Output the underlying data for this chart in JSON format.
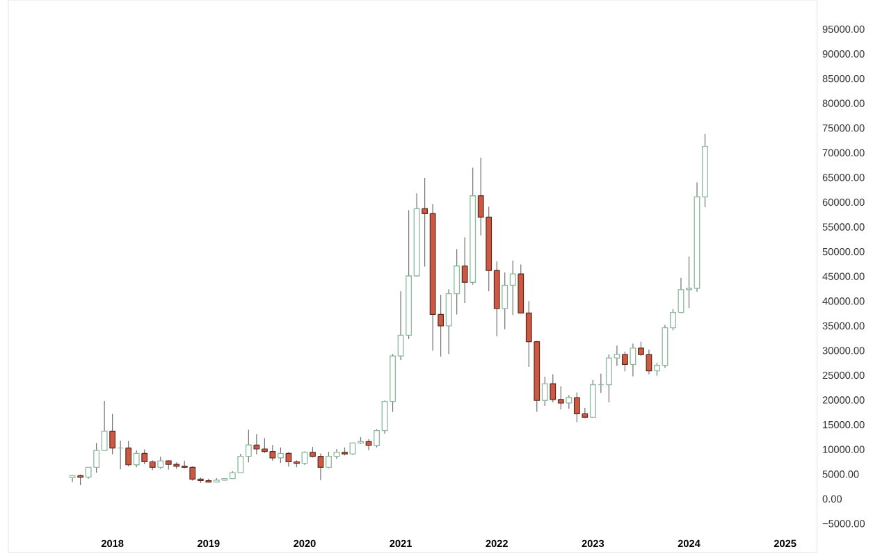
{
  "chart_data": {
    "type": "candlestick",
    "x": [
      "2017-08",
      "2017-09",
      "2017-10",
      "2017-11",
      "2017-12",
      "2018-01",
      "2018-02",
      "2018-03",
      "2018-04",
      "2018-05",
      "2018-06",
      "2018-07",
      "2018-08",
      "2018-09",
      "2018-10",
      "2018-11",
      "2018-12",
      "2019-01",
      "2019-02",
      "2019-03",
      "2019-04",
      "2019-05",
      "2019-06",
      "2019-07",
      "2019-08",
      "2019-09",
      "2019-10",
      "2019-11",
      "2019-12",
      "2020-01",
      "2020-02",
      "2020-03",
      "2020-04",
      "2020-05",
      "2020-06",
      "2020-07",
      "2020-08",
      "2020-09",
      "2020-10",
      "2020-11",
      "2020-12",
      "2021-01",
      "2021-02",
      "2021-03",
      "2021-04",
      "2021-05",
      "2021-06",
      "2021-07",
      "2021-08",
      "2021-09",
      "2021-10",
      "2021-11",
      "2021-12",
      "2022-01",
      "2022-02",
      "2022-03",
      "2022-04",
      "2022-05",
      "2022-06",
      "2022-07",
      "2022-08",
      "2022-09",
      "2022-10",
      "2022-11",
      "2022-12",
      "2023-01",
      "2023-02",
      "2023-03",
      "2023-04",
      "2023-05",
      "2023-06",
      "2023-07",
      "2023-08",
      "2023-09",
      "2023-10",
      "2023-11",
      "2023-12",
      "2024-01",
      "2024-02",
      "2024-03"
    ],
    "ohlc": [
      [
        4300,
        4700,
        3400,
        4700
      ],
      [
        4700,
        4900,
        2800,
        4400
      ],
      [
        4400,
        6400,
        4100,
        6400
      ],
      [
        6400,
        11300,
        5300,
        9800
      ],
      [
        9800,
        19800,
        9700,
        13700
      ],
      [
        13700,
        17200,
        9000,
        10300
      ],
      [
        10300,
        11800,
        6000,
        10300
      ],
      [
        10300,
        11700,
        6600,
        6900
      ],
      [
        6900,
        9800,
        6400,
        9200
      ],
      [
        9200,
        10000,
        7000,
        7500
      ],
      [
        7500,
        7800,
        5800,
        6400
      ],
      [
        6400,
        8500,
        6100,
        7700
      ],
      [
        7700,
        7800,
        5900,
        7000
      ],
      [
        7000,
        7400,
        6100,
        6600
      ],
      [
        6600,
        7700,
        6200,
        6400
      ],
      [
        6400,
        6600,
        3700,
        4000
      ],
      [
        4000,
        4300,
        3200,
        3700
      ],
      [
        3700,
        4100,
        3300,
        3400
      ],
      [
        3400,
        4200,
        3400,
        3800
      ],
      [
        3800,
        4100,
        3700,
        4100
      ],
      [
        4100,
        5600,
        4100,
        5300
      ],
      [
        5300,
        9100,
        5300,
        8600
      ],
      [
        8600,
        14000,
        7400,
        10900
      ],
      [
        10900,
        13100,
        9000,
        10100
      ],
      [
        10100,
        12300,
        9300,
        9600
      ],
      [
        9600,
        10900,
        7700,
        8300
      ],
      [
        8300,
        10400,
        7300,
        9200
      ],
      [
        9200,
        9500,
        6500,
        7500
      ],
      [
        7500,
        7800,
        6400,
        7200
      ],
      [
        7200,
        9600,
        6900,
        9400
      ],
      [
        9400,
        10500,
        8400,
        8600
      ],
      [
        8600,
        9200,
        3800,
        6400
      ],
      [
        6400,
        9500,
        6200,
        8600
      ],
      [
        8600,
        10100,
        8100,
        9400
      ],
      [
        9400,
        10400,
        8800,
        9100
      ],
      [
        9100,
        11400,
        8900,
        11300
      ],
      [
        11300,
        12500,
        11100,
        11600
      ],
      [
        11600,
        12100,
        9800,
        10800
      ],
      [
        10800,
        14100,
        10400,
        13800
      ],
      [
        13800,
        19900,
        13200,
        19700
      ],
      [
        19700,
        29300,
        17600,
        28900
      ],
      [
        28900,
        42000,
        28100,
        33100
      ],
      [
        33100,
        58400,
        32300,
        45100
      ],
      [
        45100,
        61800,
        45000,
        58700
      ],
      [
        58700,
        64900,
        47000,
        57700
      ],
      [
        57700,
        59600,
        30000,
        37300
      ],
      [
        37300,
        41300,
        28800,
        35000
      ],
      [
        35000,
        42400,
        29300,
        41500
      ],
      [
        41500,
        50500,
        37300,
        47100
      ],
      [
        47100,
        52900,
        39600,
        43800
      ],
      [
        43800,
        67000,
        43300,
        61300
      ],
      [
        61300,
        69000,
        53300,
        57000
      ],
      [
        57000,
        59100,
        42000,
        46200
      ],
      [
        46200,
        48000,
        32900,
        38500
      ],
      [
        38500,
        45800,
        34300,
        43200
      ],
      [
        43200,
        48200,
        37200,
        45500
      ],
      [
        45500,
        47400,
        37600,
        37600
      ],
      [
        37600,
        40000,
        26700,
        31800
      ],
      [
        31800,
        32000,
        17600,
        19900
      ],
      [
        19900,
        24700,
        18800,
        23300
      ],
      [
        23300,
        25200,
        19500,
        20100
      ],
      [
        20100,
        22800,
        18100,
        19400
      ],
      [
        19400,
        21000,
        18200,
        20500
      ],
      [
        20500,
        21500,
        15500,
        17200
      ],
      [
        17200,
        18400,
        16300,
        16500
      ],
      [
        16500,
        24000,
        16500,
        23100
      ],
      [
        23100,
        25300,
        21400,
        23100
      ],
      [
        23100,
        29200,
        19500,
        28500
      ],
      [
        28500,
        31000,
        26900,
        29200
      ],
      [
        29200,
        29800,
        25800,
        27200
      ],
      [
        27200,
        31400,
        24800,
        30500
      ],
      [
        30500,
        31800,
        28900,
        29200
      ],
      [
        29200,
        30200,
        25200,
        25900
      ],
      [
        25900,
        27500,
        24900,
        27000
      ],
      [
        27000,
        35200,
        26500,
        34600
      ],
      [
        34600,
        38400,
        34100,
        37700
      ],
      [
        37700,
        44700,
        37600,
        42300
      ],
      [
        42300,
        49000,
        38600,
        42600
      ],
      [
        42600,
        64000,
        41900,
        61100
      ],
      [
        61100,
        73800,
        59000,
        71300
      ]
    ],
    "colors": [
      "#8dbb9f",
      "#cc5a43",
      "#8dbb9f",
      "#8dbb9f",
      "#8dbb9f",
      "#cc5a43",
      "#8dbb9f",
      "#cc5a43",
      "#8dbb9f",
      "#cc5a43",
      "#cc5a43",
      "#8dbb9f",
      "#cc5a43",
      "#cc5a43",
      "#cc5a43",
      "#cc5a43",
      "#cc5a43",
      "#cc5a43",
      "#8dbb9f",
      "#8dbb9f",
      "#8dbb9f",
      "#8dbb9f",
      "#8dbb9f",
      "#cc5a43",
      "#cc5a43",
      "#cc5a43",
      "#8dbb9f",
      "#cc5a43",
      "#cc5a43",
      "#8dbb9f",
      "#cc5a43",
      "#cc5a43",
      "#8dbb9f",
      "#8dbb9f",
      "#cc5a43",
      "#8dbb9f",
      "#8dbb9f",
      "#cc5a43",
      "#8dbb9f",
      "#8dbb9f",
      "#8dbb9f",
      "#8dbb9f",
      "#8dbb9f",
      "#8dbb9f",
      "#cc5a43",
      "#cc5a43",
      "#cc5a43",
      "#8dbb9f",
      "#8dbb9f",
      "#cc5a43",
      "#8dbb9f",
      "#cc5a43",
      "#cc5a43",
      "#cc5a43",
      "#8dbb9f",
      "#8dbb9f",
      "#cc5a43",
      "#cc5a43",
      "#cc5a43",
      "#8dbb9f",
      "#cc5a43",
      "#cc5a43",
      "#8dbb9f",
      "#cc5a43",
      "#cc5a43",
      "#8dbb9f",
      "#8dbb9f",
      "#8dbb9f",
      "#8dbb9f",
      "#cc5a43",
      "#8dbb9f",
      "#cc5a43",
      "#cc5a43",
      "#8dbb9f",
      "#8dbb9f",
      "#8dbb9f",
      "#8dbb9f",
      "#8dbb9f",
      "#8dbb9f",
      "#8dbb9f"
    ],
    "xlim": [
      "2016-12",
      "2025-05"
    ],
    "xticks": [
      {
        "value": "2018-01",
        "label": "2018"
      },
      {
        "value": "2019-01",
        "label": "2019"
      },
      {
        "value": "2020-01",
        "label": "2020"
      },
      {
        "value": "2021-01",
        "label": "2021"
      },
      {
        "value": "2022-01",
        "label": "2022"
      },
      {
        "value": "2023-01",
        "label": "2023"
      },
      {
        "value": "2024-01",
        "label": "2024"
      },
      {
        "value": "2025-01",
        "label": "2025"
      }
    ],
    "ylim": [
      -10800,
      100900
    ],
    "yticks": [
      {
        "value": -5000,
        "label": "−5000.00"
      },
      {
        "value": 0,
        "label": "0.00"
      },
      {
        "value": 5000,
        "label": "5000.00"
      },
      {
        "value": 10000,
        "label": "10000.00"
      },
      {
        "value": 15000,
        "label": "15000.00"
      },
      {
        "value": 20000,
        "label": "20000.00"
      },
      {
        "value": 25000,
        "label": "25000.00"
      },
      {
        "value": 30000,
        "label": "30000.00"
      },
      {
        "value": 35000,
        "label": "35000.00"
      },
      {
        "value": 40000,
        "label": "40000.00"
      },
      {
        "value": 45000,
        "label": "45000.00"
      },
      {
        "value": 50000,
        "label": "50000.00"
      },
      {
        "value": 55000,
        "label": "55000.00"
      },
      {
        "value": 60000,
        "label": "60000.00"
      },
      {
        "value": 65000,
        "label": "65000.00"
      },
      {
        "value": 70000,
        "label": "70000.00"
      },
      {
        "value": 75000,
        "label": "75000.00"
      },
      {
        "value": 80000,
        "label": "80000.00"
      },
      {
        "value": 85000,
        "label": "85000.00"
      },
      {
        "value": 90000,
        "label": "90000.00"
      },
      {
        "value": 95000,
        "label": "95000.00"
      }
    ]
  }
}
